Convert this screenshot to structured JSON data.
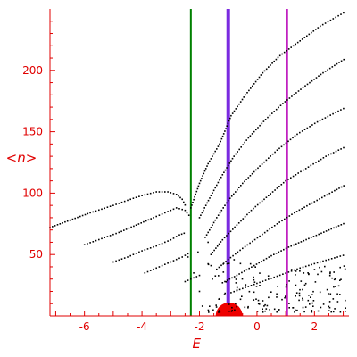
{
  "chart_data": {
    "type": "scatter",
    "title": "",
    "xlabel": "E",
    "ylabel": "<n>",
    "xlim": [
      -7.2,
      3.2
    ],
    "ylim": [
      0,
      250
    ],
    "xticks": [
      -6,
      -4,
      -2,
      0,
      2
    ],
    "yticks": [
      50,
      100,
      150,
      200
    ],
    "grid": false,
    "colors": {
      "axis": "#e00000",
      "points": "#000000",
      "green_line": "#008000",
      "blue_line": "#7a2ae0",
      "magenta_line": "#c020c0",
      "blob": "#ee0000"
    },
    "vertical_lines": [
      {
        "x": -2.3,
        "color": "#008000"
      },
      {
        "x": -1.0,
        "color": "#7a2ae0"
      },
      {
        "x": 1.05,
        "color": "#c020c0"
      }
    ],
    "blob": {
      "x": -0.97,
      "y": 0
    },
    "branches": [
      {
        "points": [
          [
            -7.2,
            72
          ],
          [
            -6.5,
            78
          ],
          [
            -5.8,
            84
          ],
          [
            -5.0,
            90
          ],
          [
            -4.4,
            95
          ],
          [
            -4.0,
            98
          ],
          [
            -3.5,
            101
          ],
          [
            -3.1,
            101
          ],
          [
            -2.8,
            99
          ],
          [
            -2.6,
            95
          ],
          [
            -2.45,
            88
          ]
        ]
      },
      {
        "points": [
          [
            -6.0,
            58
          ],
          [
            -5.4,
            63
          ],
          [
            -4.8,
            68
          ],
          [
            -4.2,
            74
          ],
          [
            -3.6,
            80
          ],
          [
            -3.2,
            84
          ],
          [
            -2.8,
            88
          ],
          [
            -2.5,
            86
          ],
          [
            -2.3,
            80
          ]
        ]
      },
      {
        "points": [
          [
            -5.0,
            44
          ],
          [
            -4.5,
            48
          ],
          [
            -4.0,
            53
          ],
          [
            -3.5,
            57
          ],
          [
            -3.0,
            62
          ],
          [
            -2.7,
            66
          ],
          [
            -2.45,
            68
          ]
        ]
      },
      {
        "points": [
          [
            -3.9,
            35
          ],
          [
            -3.5,
            39
          ],
          [
            -3.0,
            44
          ],
          [
            -2.6,
            48
          ],
          [
            -2.3,
            52
          ]
        ]
      },
      {
        "points": [
          [
            -2.5,
            28
          ],
          [
            -2.2,
            31
          ],
          [
            -1.9,
            34
          ]
        ]
      },
      {
        "points": [
          [
            -2.3,
            88
          ],
          [
            -2.0,
            108
          ],
          [
            -1.7,
            124
          ],
          [
            -1.3,
            140
          ],
          [
            -0.9,
            163
          ],
          [
            -0.4,
            180
          ],
          [
            0.2,
            198
          ],
          [
            0.8,
            212
          ],
          [
            1.5,
            224
          ],
          [
            2.2,
            236
          ],
          [
            3.1,
            248
          ]
        ]
      },
      {
        "points": [
          [
            -2.0,
            80
          ],
          [
            -1.6,
            98
          ],
          [
            -1.2,
            115
          ],
          [
            -0.8,
            130
          ],
          [
            -0.3,
            145
          ],
          [
            0.3,
            160
          ],
          [
            0.9,
            173
          ],
          [
            1.6,
            186
          ],
          [
            2.3,
            198
          ],
          [
            3.1,
            210
          ]
        ]
      },
      {
        "points": [
          [
            -1.8,
            64
          ],
          [
            -1.4,
            80
          ],
          [
            -1.0,
            94
          ],
          [
            -0.5,
            108
          ],
          [
            0.1,
            122
          ],
          [
            0.7,
            135
          ],
          [
            1.4,
            148
          ],
          [
            2.1,
            158
          ],
          [
            3.1,
            170
          ]
        ]
      },
      {
        "points": [
          [
            -1.6,
            50
          ],
          [
            -1.2,
            62
          ],
          [
            -0.7,
            74
          ],
          [
            -0.2,
            86
          ],
          [
            0.4,
            98
          ],
          [
            1.0,
            110
          ],
          [
            1.7,
            120
          ],
          [
            2.4,
            130
          ],
          [
            3.1,
            138
          ]
        ]
      },
      {
        "points": [
          [
            -1.4,
            38
          ],
          [
            -1.0,
            46
          ],
          [
            -0.5,
            55
          ],
          [
            0.1,
            65
          ],
          [
            0.7,
            75
          ],
          [
            1.3,
            84
          ],
          [
            2.0,
            93
          ],
          [
            2.7,
            102
          ],
          [
            3.1,
            107
          ]
        ]
      },
      {
        "points": [
          [
            -1.2,
            27
          ],
          [
            -0.7,
            33
          ],
          [
            -0.1,
            41
          ],
          [
            0.5,
            49
          ],
          [
            1.1,
            56
          ],
          [
            1.8,
            63
          ],
          [
            2.5,
            70
          ],
          [
            3.1,
            76
          ]
        ]
      },
      {
        "points": [
          [
            -0.9,
            19
          ],
          [
            -0.3,
            24
          ],
          [
            0.3,
            29
          ],
          [
            0.9,
            34
          ],
          [
            1.5,
            39
          ],
          [
            2.2,
            44
          ],
          [
            3.1,
            50
          ]
        ]
      }
    ]
  }
}
